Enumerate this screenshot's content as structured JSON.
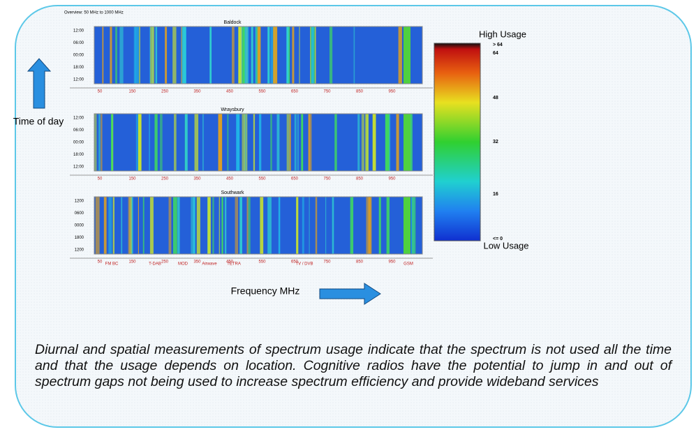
{
  "header": {
    "overview": "Overview: 50 MHz to 1000 MHz"
  },
  "panels": [
    {
      "title": "Baldock",
      "y_labels": [
        "12:00",
        "06:00",
        "00:00",
        "18:00",
        "12:00"
      ],
      "x_labels": [
        "50",
        "150",
        "250",
        "350",
        "450",
        "550",
        "650",
        "750",
        "850",
        "950"
      ]
    },
    {
      "title": "Wraysbury",
      "y_labels": [
        "12:00",
        "06:00",
        "00:00",
        "18:00",
        "12:00"
      ],
      "x_labels": [
        "50",
        "150",
        "250",
        "350",
        "450",
        "550",
        "650",
        "750",
        "850",
        "950"
      ]
    },
    {
      "title": "Southwark",
      "y_labels": [
        "1200",
        "0600",
        "0000",
        "1800",
        "1200"
      ],
      "x_labels": [
        "50",
        "150",
        "250",
        "350",
        "450",
        "550",
        "650",
        "750",
        "850",
        "950"
      ]
    }
  ],
  "band_labels": [
    "FM BC",
    "T-DAB",
    "MOD",
    "Airwave",
    "TETRA",
    "TV / DVB",
    "GSM"
  ],
  "colorbar": {
    "high": "High Usage",
    "low": "Low Usage",
    "labels": [
      "> 64",
      "64",
      "48",
      "32",
      "16",
      "<= 0"
    ]
  },
  "axis_labels": {
    "time": "Time of day",
    "frequency": "Frequency MHz"
  },
  "caption": "Diurnal and spatial measurements of spectrum usage indicate that the spectrum is not used all the time and that the usage depends on location. Cognitive radios have the potential to jump in and out of spectrum gaps not being used to increase spectrum efficiency and provide wideband services"
}
